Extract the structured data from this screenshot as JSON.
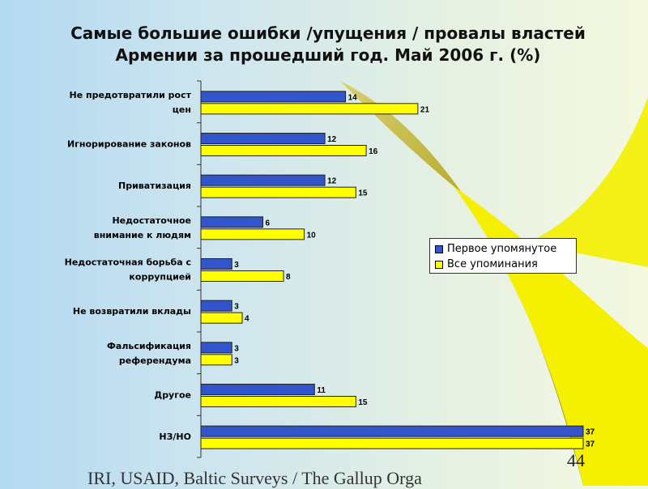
{
  "chart_data": {
    "type": "bar",
    "orientation": "horizontal",
    "title": "Самые большие ошибки /упущения / провалы властей Армении за прошедший год. Май 2006 г.  (%)",
    "title_lines": [
      "Самые большие ошибки /упущения / провалы властей",
      "Армении за прошедший год. Май 2006 г.  (%)"
    ],
    "categories": [
      [
        "Не предотвратили рост",
        "цен"
      ],
      [
        "Игнорирование законов"
      ],
      [
        "Приватизация"
      ],
      [
        "Недостаточное",
        "внимание к людям"
      ],
      [
        "Недостаточная борьба с",
        "коррупцией"
      ],
      [
        "Не возвратили вклады"
      ],
      [
        "Фальсификация",
        "референдума"
      ],
      [
        "Другое"
      ],
      [
        "НЗ/НО"
      ]
    ],
    "series": [
      {
        "name": "Первое упомянутое",
        "color": "#3355cc",
        "values": [
          14,
          12,
          12,
          6,
          3,
          3,
          3,
          11,
          37
        ]
      },
      {
        "name": "Все упоминания",
        "color": "#ffff00",
        "values": [
          21,
          16,
          15,
          10,
          8,
          4,
          3,
          15,
          37
        ]
      }
    ],
    "xlim": [
      0,
      37
    ],
    "grid": false,
    "legend_position": "right"
  },
  "page_number": "44",
  "footer": "IRI, USAID,  Baltic Surveys / The Gallup Orga"
}
